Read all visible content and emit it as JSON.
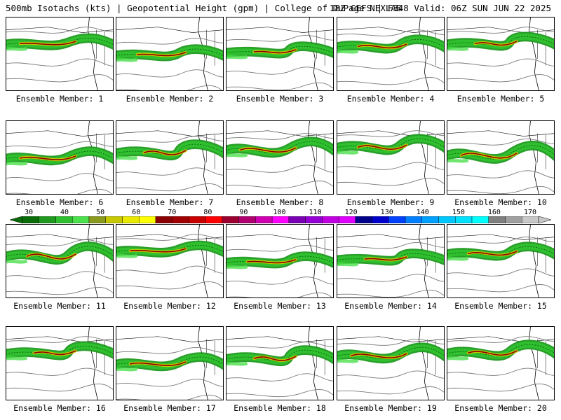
{
  "header": {
    "left": "500mb Isotachs (kts) | Geopotential Height (gpm) | College of DuPage NEXLAB",
    "right": "18Z GEFS | F348 Valid: 06Z SUN JUN 22 2025"
  },
  "panels": [
    {
      "caption": "Ensemble Member: 1"
    },
    {
      "caption": "Ensemble Member: 2"
    },
    {
      "caption": "Ensemble Member: 3"
    },
    {
      "caption": "Ensemble Member: 4"
    },
    {
      "caption": "Ensemble Member: 5"
    },
    {
      "caption": "Ensemble Member: 6"
    },
    {
      "caption": "Ensemble Member: 7"
    },
    {
      "caption": "Ensemble Member: 8"
    },
    {
      "caption": "Ensemble Member: 9"
    },
    {
      "caption": "Ensemble Member: 10"
    },
    {
      "caption": "Ensemble Member: 11"
    },
    {
      "caption": "Ensemble Member: 12"
    },
    {
      "caption": "Ensemble Member: 13"
    },
    {
      "caption": "Ensemble Member: 14"
    },
    {
      "caption": "Ensemble Member: 15"
    },
    {
      "caption": "Ensemble Member: 16"
    },
    {
      "caption": "Ensemble Member: 17"
    },
    {
      "caption": "Ensemble Member: 18"
    },
    {
      "caption": "Ensemble Member: 19"
    },
    {
      "caption": "Ensemble Member: 20"
    }
  ],
  "colorbar": {
    "labels": [
      "30",
      "40",
      "50",
      "60",
      "70",
      "80",
      "90",
      "100",
      "110",
      "120",
      "130",
      "140",
      "150",
      "160",
      "170"
    ],
    "colors": [
      "#0a6d0a",
      "#1f9a1f",
      "#2fbf2f",
      "#4ce04c",
      "#8a9a1f",
      "#c8c800",
      "#e8e800",
      "#ffff00",
      "#8b0000",
      "#a00000",
      "#c80000",
      "#ff0000",
      "#9b0030",
      "#b00070",
      "#d000b0",
      "#ff00ff",
      "#7a00b4",
      "#9400d3",
      "#c000e0",
      "#e000ff",
      "#00008b",
      "#0000cd",
      "#0040ff",
      "#0080ff",
      "#00a0ff",
      "#00c8ff",
      "#00e0ff",
      "#00ffff",
      "#808080",
      "#a0a0a0",
      "#c8c8c8"
    ]
  }
}
